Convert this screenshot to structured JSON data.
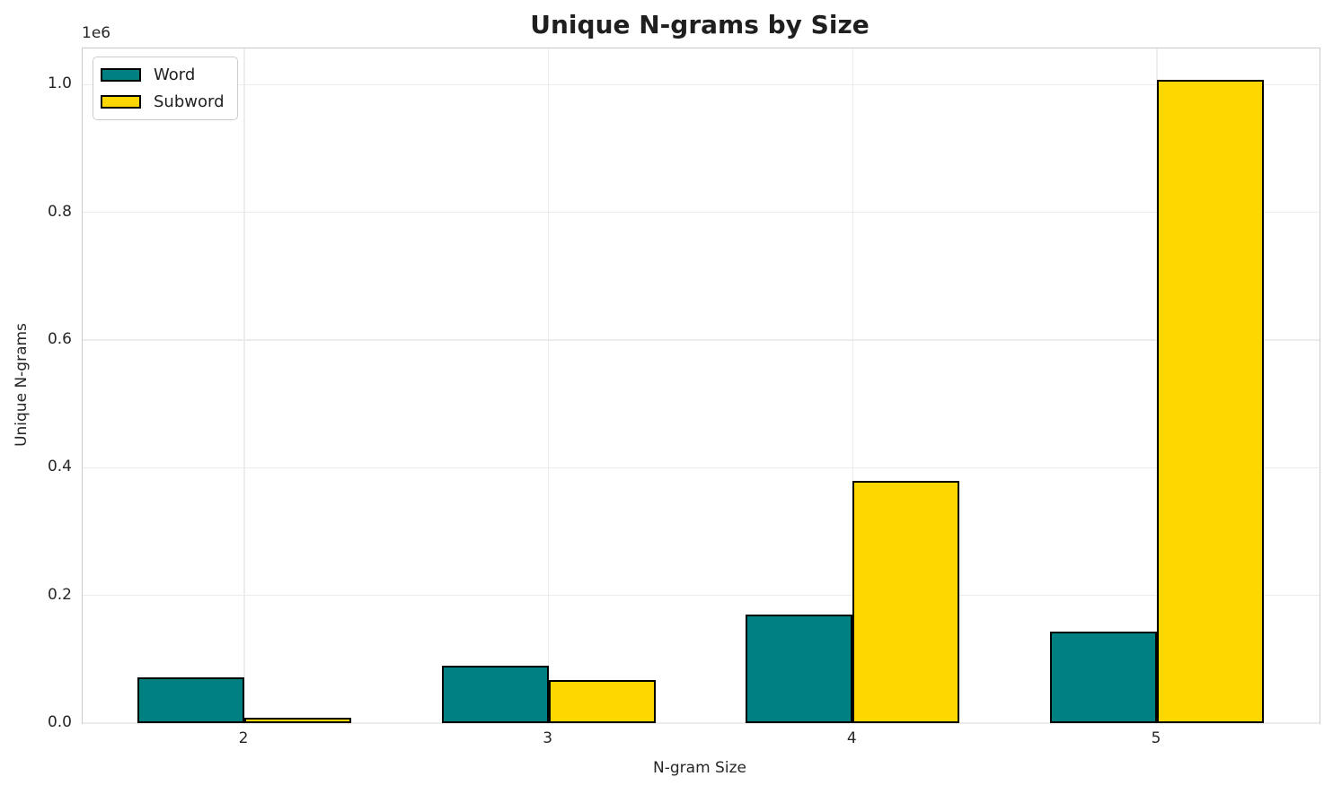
{
  "chart_data": {
    "type": "bar",
    "title": "Unique N-grams by Size",
    "xlabel": "N-gram Size",
    "ylabel": "Unique N-grams",
    "y_offset_label": "1e6",
    "categories": [
      "2",
      "3",
      "4",
      "5"
    ],
    "series": [
      {
        "name": "Word",
        "color": "#008080",
        "values": [
          71000,
          90000,
          170000,
          143000
        ]
      },
      {
        "name": "Subword",
        "color": "#FFD700",
        "values": [
          8000,
          68000,
          380000,
          1008000
        ]
      }
    ],
    "ylim": [
      0,
      1056600
    ],
    "yticks": [
      0,
      200000,
      400000,
      600000,
      800000,
      1000000
    ],
    "ytick_labels": [
      "0.0",
      "0.2",
      "0.4",
      "0.6",
      "0.8",
      "1.0"
    ],
    "grid": true,
    "legend_position": "upper left",
    "bar_edge_color": "#000000",
    "grid_color": "#ececec",
    "spine_color": "#cbcbcb"
  }
}
